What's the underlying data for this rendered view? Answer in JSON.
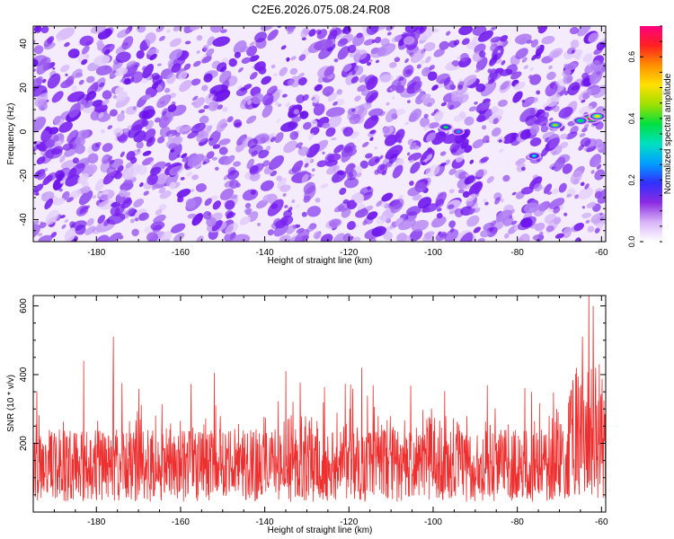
{
  "title": "C2E6.2026.075.08.24.R08",
  "colors": {
    "signal_line": "#ee2f2f",
    "frame": "#000000",
    "background_noise": "#7a22f0",
    "colorbar_stops": [
      "#ffffff",
      "#d8b4f8",
      "#8a2be2",
      "#3030ff",
      "#00a0ff",
      "#00e0c0",
      "#00e040",
      "#a0e000",
      "#ffe000",
      "#ff9000",
      "#ff2020",
      "#ff007f"
    ]
  },
  "chart_data": [
    {
      "type": "heatmap",
      "xlabel": "Height of straight line (km)",
      "ylabel": "Frequency (Hz)",
      "xlim": [
        -195,
        -59
      ],
      "ylim": [
        -50,
        48
      ],
      "xticks": [
        -180,
        -160,
        -140,
        -120,
        -100,
        -80,
        -60
      ],
      "yticks": [
        -40,
        -20,
        0,
        20,
        40
      ],
      "colorbar": {
        "label": "Normalized spectral amplitude",
        "range": [
          0,
          0.7
        ],
        "ticks": [
          0.0,
          0.2,
          0.4,
          0.6
        ],
        "tick_labels": [
          "0.0",
          "0.2",
          "0.4",
          "0.6"
        ]
      },
      "hotspots": [
        {
          "x": -62.5,
          "y": 6,
          "value": 0.68
        },
        {
          "x": -61,
          "y": 7,
          "value": 0.5
        },
        {
          "x": -65,
          "y": 5,
          "value": 0.4
        },
        {
          "x": -71,
          "y": 3,
          "value": 0.45
        },
        {
          "x": -97,
          "y": 2,
          "value": 0.35
        },
        {
          "x": -94,
          "y": 0,
          "value": 0.25
        },
        {
          "x": -76,
          "y": -11,
          "value": 0.3
        }
      ]
    },
    {
      "type": "line",
      "xlabel": "Height of straight line (km)",
      "ylabel": "SNR (10 * v/v)",
      "xlim": [
        -195,
        -59
      ],
      "ylim": [
        0,
        630
      ],
      "xticks": [
        -180,
        -160,
        -140,
        -120,
        -100,
        -80,
        -60
      ],
      "yticks": [
        200,
        400,
        600
      ],
      "series": [
        {
          "baseline_mean": 135,
          "noise_band": [
            30,
            280
          ],
          "peaks": [
            {
              "x": -183,
              "y": 440
            },
            {
              "x": -176,
              "y": 510
            },
            {
              "x": -152,
              "y": 405
            },
            {
              "x": -135,
              "y": 410
            },
            {
              "x": -117,
              "y": 420
            },
            {
              "x": -66,
              "y": 420
            },
            {
              "x": -64.5,
              "y": 510
            },
            {
              "x": -63,
              "y": 630
            },
            {
              "x": -62,
              "y": 600
            },
            {
              "x": -60.5,
              "y": 430
            }
          ]
        }
      ]
    }
  ]
}
